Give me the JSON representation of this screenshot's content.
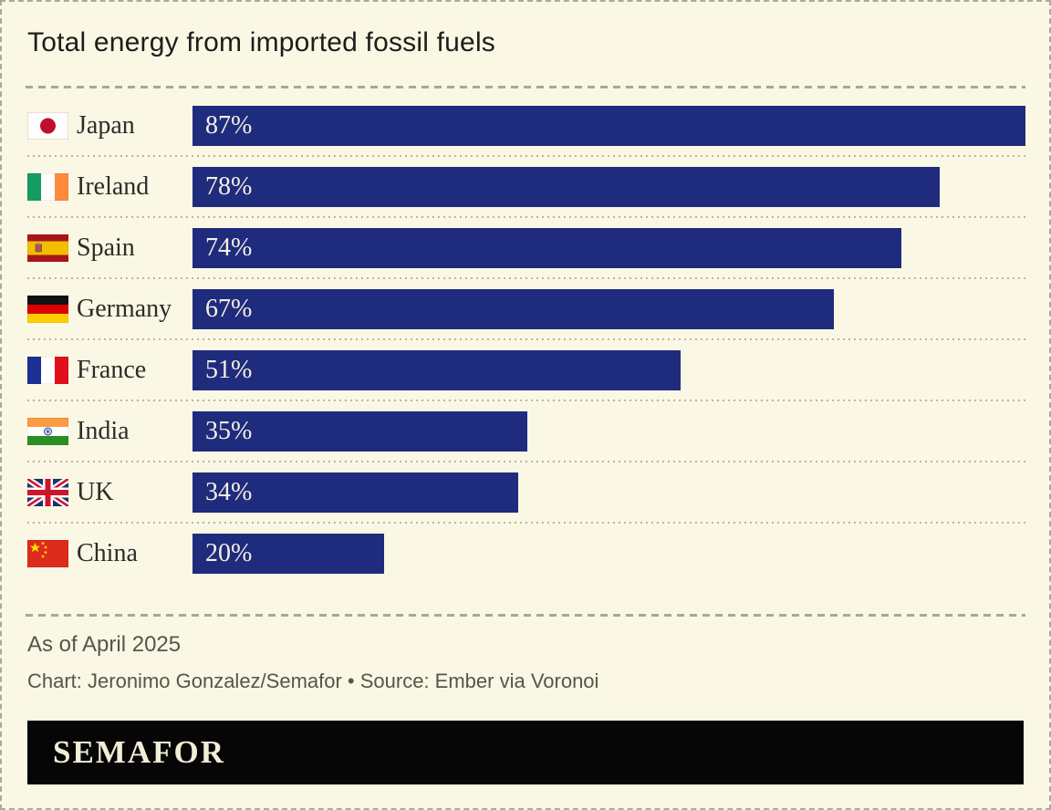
{
  "page": {
    "title": "Total energy from imported fossil fuels",
    "note": "As of April 2025",
    "credit": "Chart: Jeronimo Gonzalez/Semafor • Source: Ember via Voronoi",
    "brand": "SEMAFOR"
  },
  "colors": {
    "background": "#faf7e5",
    "border_dash": "#aba99c",
    "title_text": "#1d1d1a",
    "bar_fill": "#1f2b7d",
    "bar_value_text": "#f3f0e0",
    "divider_dash": "#a9a79b",
    "row_dot": "#b8b5a6",
    "footer_text": "#56554b",
    "banner_background": "#060606",
    "banner_text": "#f2edd8"
  },
  "chart_data": {
    "type": "bar",
    "orientation": "horizontal",
    "title": "Total energy from imported fossil fuels",
    "unit": "%",
    "value_axis_max": 87,
    "grid": false,
    "legend": false,
    "categories": [
      "Japan",
      "Ireland",
      "Spain",
      "Germany",
      "France",
      "India",
      "UK",
      "China"
    ],
    "values": [
      87,
      78,
      74,
      67,
      51,
      35,
      34,
      20
    ],
    "value_labels": [
      "87%",
      "78%",
      "74%",
      "67%",
      "51%",
      "35%",
      "34%",
      "20%"
    ],
    "note": "As of April 2025",
    "source": "Ember via Voronoi",
    "chart_credit": "Jeronimo Gonzalez/Semafor"
  },
  "rows": [
    {
      "country": "Japan",
      "value": 87,
      "label": "87%",
      "flag": "jp",
      "icon": "japan-flag-icon"
    },
    {
      "country": "Ireland",
      "value": 78,
      "label": "78%",
      "flag": "ie",
      "icon": "ireland-flag-icon"
    },
    {
      "country": "Spain",
      "value": 74,
      "label": "74%",
      "flag": "es",
      "icon": "spain-flag-icon"
    },
    {
      "country": "Germany",
      "value": 67,
      "label": "67%",
      "flag": "de",
      "icon": "germany-flag-icon"
    },
    {
      "country": "France",
      "value": 51,
      "label": "51%",
      "flag": "fr",
      "icon": "france-flag-icon"
    },
    {
      "country": "India",
      "value": 35,
      "label": "35%",
      "flag": "in",
      "icon": "india-flag-icon"
    },
    {
      "country": "UK",
      "value": 34,
      "label": "34%",
      "flag": "gb",
      "icon": "uk-flag-icon"
    },
    {
      "country": "China",
      "value": 20,
      "label": "20%",
      "flag": "cn",
      "icon": "china-flag-icon"
    }
  ]
}
